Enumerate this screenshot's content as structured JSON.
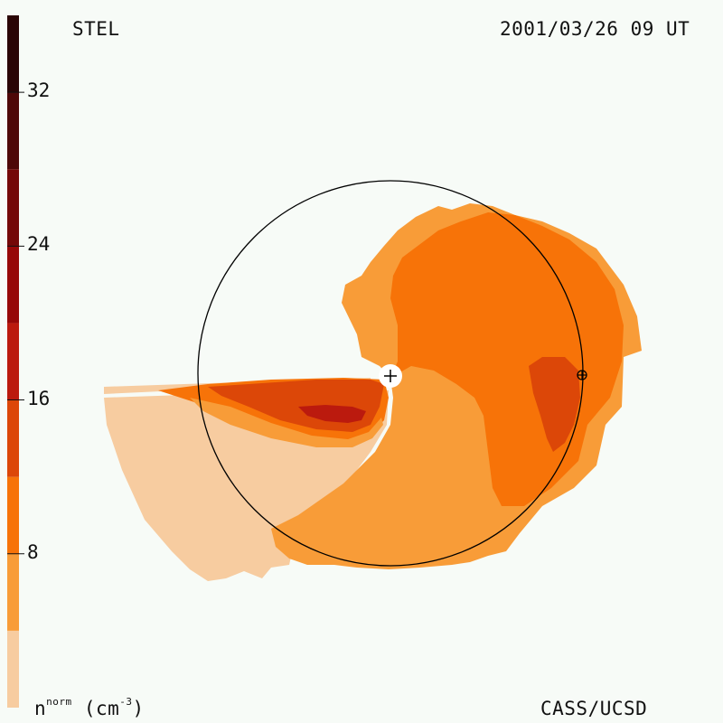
{
  "header": {
    "station": "STEL",
    "datetime": "2001/03/26 09 UT"
  },
  "footer": {
    "credit": "CASS/UCSD",
    "unit_base": "n",
    "unit_sup": "norm",
    "unit_paren": "(cm",
    "unit_exp": "-3",
    "unit_close": ")"
  },
  "colorbar": {
    "min": 0,
    "max": 36,
    "tick_labels": [
      "8",
      "16",
      "24",
      "32"
    ],
    "ticks": [
      8,
      16,
      24,
      32
    ],
    "levels": [
      {
        "from": 0,
        "to": 4,
        "color": "#f7cca0"
      },
      {
        "from": 4,
        "to": 8,
        "color": "#f89c38"
      },
      {
        "from": 8,
        "to": 12,
        "color": "#f77308"
      },
      {
        "from": 12,
        "to": 16,
        "color": "#dc4708"
      },
      {
        "from": 16,
        "to": 20,
        "color": "#bb1a0e"
      },
      {
        "from": 20,
        "to": 24,
        "color": "#960808"
      },
      {
        "from": 24,
        "to": 28,
        "color": "#740808"
      },
      {
        "from": 28,
        "to": 32,
        "color": "#4e0808"
      },
      {
        "from": 32,
        "to": 36,
        "color": "#2a0505"
      }
    ]
  },
  "map": {
    "sun_symbol": "+",
    "earth_symbol": "⊕"
  }
}
